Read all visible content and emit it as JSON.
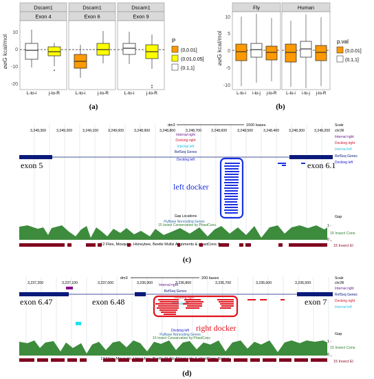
{
  "panel_a": {
    "caption": "(a)",
    "y_axis_label": "⌀⌀G kcal/mol",
    "y_ticks": [
      "10",
      "0",
      "-10",
      "-20"
    ],
    "facets": [
      {
        "top": "Dscam1",
        "bottom": "Exon 4",
        "x_labels": [
          "L-to-i",
          "j-to-R"
        ]
      },
      {
        "top": "Dscam1",
        "bottom": "Exon 6",
        "x_labels": [
          "L-to-i",
          "j-to-R"
        ]
      },
      {
        "top": "Dscam1",
        "bottom": "Exon 9",
        "x_labels": [
          "L-to-i",
          "j-to-R"
        ]
      }
    ],
    "legend": {
      "title": "P",
      "items": [
        "(0,0.01]",
        "(0.01,0.05]",
        "(0.1,1]"
      ]
    }
  },
  "panel_b": {
    "caption": "(b)",
    "y_axis_label": "⌀⌀G kcal/mol",
    "y_ticks": [
      "10",
      "5",
      "0",
      "-5",
      "-10"
    ],
    "facets": [
      {
        "top": "Fly",
        "x_labels": [
          "L-to-i",
          "i-to-j",
          "j-to-R"
        ]
      },
      {
        "top": "Human",
        "x_labels": [
          "L-to-i",
          "i-to-j",
          "j-to-R"
        ]
      }
    ],
    "legend": {
      "title": "p.val",
      "items": [
        "(0,0.01]",
        "(0.1,1]"
      ]
    }
  },
  "panel_c": {
    "caption": "(c)",
    "scale_label": "1500 bases",
    "assembly": "dm3",
    "coords": [
      "3,249,300",
      "3,249,200",
      "3,249,100",
      "3,249,000",
      "3,248,900",
      "3,248,800",
      "3,248,700",
      "3,248,600",
      "3,248,500",
      "3,248,400",
      "3,248,300",
      "3,248,200"
    ],
    "right_labels": [
      "Scale",
      "chr2R",
      "Internal right",
      "Docking right",
      "Internal left",
      "RefSeq Genes",
      "Docking left"
    ],
    "center_labels": [
      "Internal right",
      "Docking right",
      "Internal left",
      "RefSeq Genes",
      "Docking left"
    ],
    "exon_left": "exon 5",
    "exon_right": "exon 6.1",
    "docker_label": "left docker",
    "gap_locations": "Gap Locations",
    "flybase": "FlyBase Noncoding Genes",
    "conservation": "15 Insect Conservation by PhastCons",
    "gap": "Gap",
    "cons_right": "15 Insect Cons",
    "tick_1": "1 -",
    "tick_0": "0 _",
    "multiz": "12 Flies, Mosquito, Honeybee, Beetle Multiz Alignments & phastCons Scores",
    "insect_el": "15 Insect El"
  },
  "panel_d": {
    "caption": "(d)",
    "scale_label": "200 bases",
    "assembly": "dm3",
    "coords": [
      "3,237,200",
      "3,237,100",
      "3,237,000",
      "3,236,900",
      "3,236,800",
      "3,236,700",
      "3,236,600",
      "3,236,500"
    ],
    "right_labels": [
      "Scale",
      "chr2R",
      "Internal right",
      "RefSeq Genes",
      "Docking right",
      "Internal left"
    ],
    "center_labels": [
      "Internal right",
      "RefSeq Genes",
      "Docking right",
      "Internal left",
      "Docking left"
    ],
    "exon_a": "exon 6.47",
    "exon_b": "exon 6.48",
    "exon_c": "exon 7",
    "docker_label": "right docker",
    "flybase": "FlyBase Noncoding Genes",
    "conservation": "15 Insect Conservation by PhastCons",
    "gap": "Gap",
    "cons_right": "15 Insect Cons",
    "tick_1": "1 -",
    "tick_0": "0 _",
    "multiz": "12 Flies, Mosquito, Honeybee, Beetle Multiz Alignments & phastCons Scores",
    "insect_el": "15 Insect El"
  }
}
